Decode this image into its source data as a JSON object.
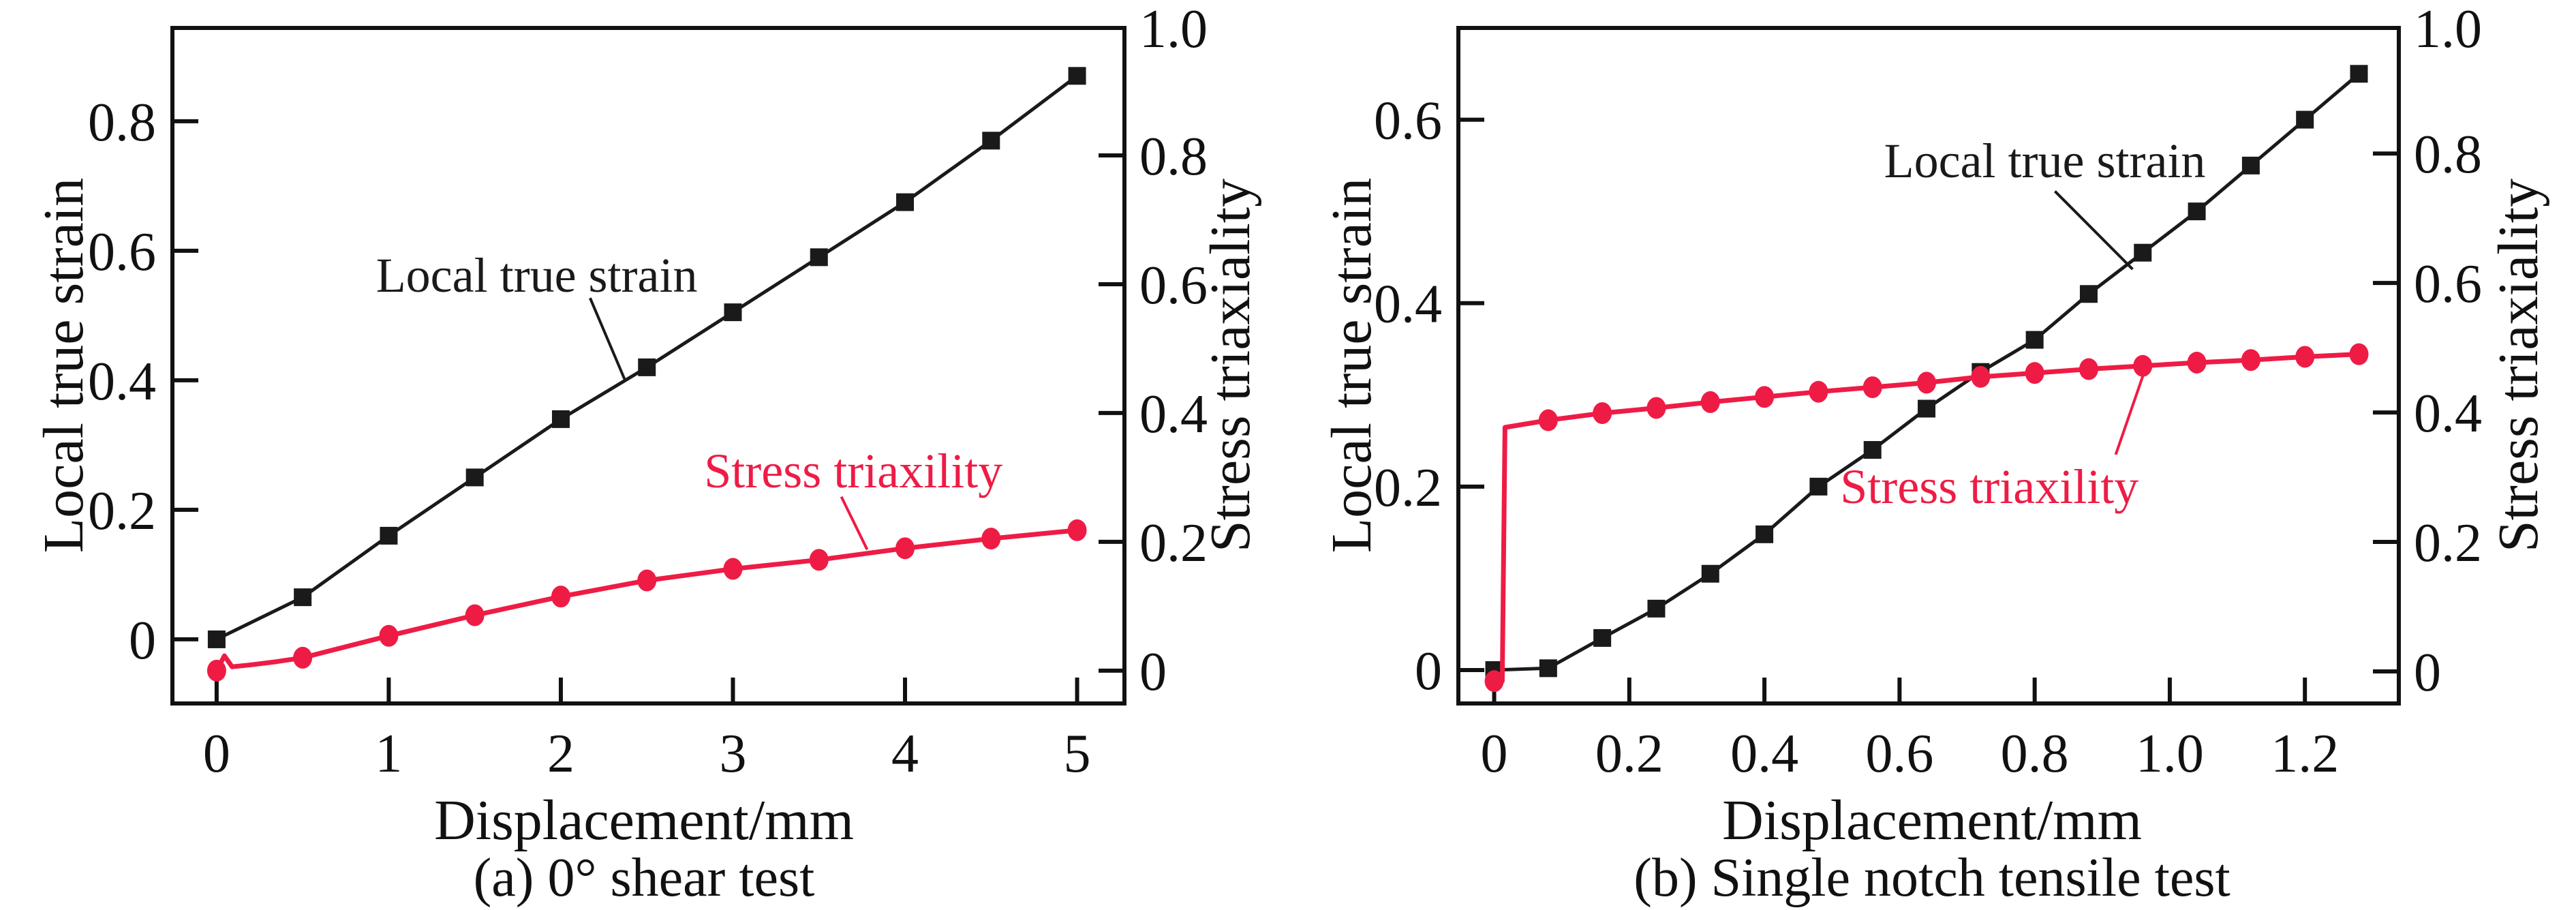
{
  "figure": {
    "background": "#ffffff",
    "text_color": "#111111",
    "axis_color": "#111111",
    "strain_color": "#1a1a1a",
    "triaxiality_color": "#ee1c45"
  },
  "chart_data": [
    {
      "type": "line",
      "caption": "(a) 0° shear test",
      "xlabel": "Displacement/mm",
      "ylabel_left": "Local true strain",
      "ylabel_right": "Stress triaxiality",
      "xlim": [
        -0.257,
        5.275
      ],
      "ylim_left": [
        -0.099,
        0.944
      ],
      "ylim_right": [
        -0.051,
        0.998
      ],
      "grid": "off",
      "x_ticks": [
        {
          "v": 0,
          "label": "0"
        },
        {
          "v": 1,
          "label": "1"
        },
        {
          "v": 2,
          "label": "2"
        },
        {
          "v": 3,
          "label": "3"
        },
        {
          "v": 4,
          "label": "4"
        },
        {
          "v": 5,
          "label": "5"
        }
      ],
      "y_ticks_left": [
        {
          "v": 0,
          "label": "0"
        },
        {
          "v": 0.2,
          "label": "0.2"
        },
        {
          "v": 0.4,
          "label": "0.4"
        },
        {
          "v": 0.6,
          "label": "0.6"
        },
        {
          "v": 0.8,
          "label": "0.8"
        }
      ],
      "y_ticks_right": [
        {
          "v": 0,
          "label": "0"
        },
        {
          "v": 0.2,
          "label": "0.2"
        },
        {
          "v": 0.4,
          "label": "0.4"
        },
        {
          "v": 0.6,
          "label": "0.6"
        },
        {
          "v": 0.8,
          "label": "0.8"
        },
        {
          "v": 0.998,
          "label": "1.0"
        }
      ],
      "series": [
        {
          "name": "Local true strain",
          "axis": "left",
          "color": "#1a1a1a",
          "marker": "square",
          "x": [
            0,
            0.5,
            1,
            1.5,
            2,
            2.5,
            3,
            3.5,
            4,
            4.5,
            5
          ],
          "y": [
            0,
            0.065,
            0.16,
            0.25,
            0.34,
            0.42,
            0.505,
            0.59,
            0.675,
            0.77,
            0.87
          ]
        },
        {
          "name": "Stress triaxility",
          "axis": "right",
          "color": "#ee1c45",
          "marker": "circle",
          "x": [
            0,
            0.5,
            1,
            1.5,
            2,
            2.5,
            3,
            3.5,
            4,
            4.5,
            5
          ],
          "y": [
            0,
            0.02,
            0.054,
            0.086,
            0.115,
            0.14,
            0.158,
            0.172,
            0.19,
            0.205,
            0.218
          ],
          "line_x": [
            0,
            0.045,
            0.09,
            0.2,
            0.35,
            0.5,
            1,
            1.5,
            2,
            2.5,
            3,
            3.5,
            4,
            4.5,
            5
          ],
          "line_y": [
            0,
            0.023,
            0.006,
            0.009,
            0.014,
            0.02,
            0.054,
            0.086,
            0.115,
            0.14,
            0.158,
            0.172,
            0.19,
            0.205,
            0.218
          ]
        }
      ],
      "annotations": [
        {
          "id": "strain",
          "text": "Local true strain",
          "color": "#1a1a1a",
          "axis": "left",
          "at": {
            "x": 1.86,
            "v": 0.562
          },
          "leader": [
            {
              "x": 2.17,
              "v": 0.527
            },
            {
              "x": 2.37,
              "v": 0.402
            }
          ]
        },
        {
          "id": "triax",
          "text": "Stress triaxility",
          "color": "#ee1c45",
          "axis": "right",
          "at": {
            "x": 3.7,
            "v": 0.31
          },
          "leader": [
            {
              "x": 3.63,
              "v": 0.27
            },
            {
              "x": 3.78,
              "v": 0.188
            }
          ]
        }
      ]
    },
    {
      "type": "line",
      "caption": "(b) Single notch tensile test",
      "xlabel": "Displacement/mm",
      "ylabel_left": "Local true strain",
      "ylabel_right": "Stress triaxiality",
      "xlim": [
        -0.053,
        1.339
      ],
      "ylim_left": [
        -0.0364,
        0.7
      ],
      "ylim_right": [
        -0.0495,
        0.994
      ],
      "grid": "off",
      "x_ticks": [
        {
          "v": 0,
          "label": "0"
        },
        {
          "v": 0.2,
          "label": "0.2"
        },
        {
          "v": 0.4,
          "label": "0.4"
        },
        {
          "v": 0.6,
          "label": "0.6"
        },
        {
          "v": 0.8,
          "label": "0.8"
        },
        {
          "v": 1.0,
          "label": "1.0"
        },
        {
          "v": 1.2,
          "label": "1.2"
        }
      ],
      "y_ticks_left": [
        {
          "v": 0,
          "label": "0"
        },
        {
          "v": 0.2,
          "label": "0.2"
        },
        {
          "v": 0.4,
          "label": "0.4"
        },
        {
          "v": 0.6,
          "label": "0.6"
        }
      ],
      "y_ticks_right": [
        {
          "v": 0,
          "label": "0"
        },
        {
          "v": 0.2,
          "label": "0.2"
        },
        {
          "v": 0.4,
          "label": "0.4"
        },
        {
          "v": 0.6,
          "label": "0.6"
        },
        {
          "v": 0.8,
          "label": "0.8"
        },
        {
          "v": 0.994,
          "label": "1.0"
        }
      ],
      "series": [
        {
          "name": "Local true strain",
          "axis": "left",
          "color": "#1a1a1a",
          "marker": "square",
          "x": [
            0,
            0.08,
            0.16,
            0.24,
            0.32,
            0.4,
            0.48,
            0.56,
            0.64,
            0.72,
            0.8,
            0.88,
            0.96,
            1.04,
            1.12,
            1.2,
            1.28
          ],
          "y": [
            0,
            0.002,
            0.035,
            0.067,
            0.105,
            0.148,
            0.2,
            0.24,
            0.285,
            0.325,
            0.36,
            0.41,
            0.455,
            0.5,
            0.55,
            0.6,
            0.65
          ]
        },
        {
          "name": "Stress triaxility",
          "axis": "right",
          "color": "#ee1c45",
          "marker": "circle",
          "x": [
            0,
            0.08,
            0.16,
            0.24,
            0.32,
            0.4,
            0.48,
            0.56,
            0.64,
            0.72,
            0.8,
            0.88,
            0.96,
            1.04,
            1.12,
            1.2,
            1.28
          ],
          "y": [
            -0.015,
            0.388,
            0.399,
            0.407,
            0.416,
            0.424,
            0.432,
            0.439,
            0.446,
            0.455,
            0.461,
            0.467,
            0.472,
            0.477,
            0.481,
            0.486,
            0.49
          ],
          "line_x": [
            0,
            0.012,
            0.016,
            0.08,
            0.16,
            0.24,
            0.32,
            0.4,
            0.48,
            0.56,
            0.64,
            0.72,
            0.8,
            0.88,
            0.96,
            1.04,
            1.12,
            1.2,
            1.28
          ],
          "line_y": [
            -0.015,
            -0.015,
            0.377,
            0.388,
            0.399,
            0.407,
            0.416,
            0.424,
            0.432,
            0.439,
            0.446,
            0.455,
            0.461,
            0.467,
            0.472,
            0.477,
            0.481,
            0.486,
            0.49
          ]
        }
      ],
      "annotations": [
        {
          "id": "strain",
          "text": "Local true strain",
          "color": "#1a1a1a",
          "axis": "left",
          "at": {
            "x": 0.815,
            "v": 0.555
          },
          "leader": [
            {
              "x": 0.83,
              "v": 0.522
            },
            {
              "x": 0.945,
              "v": 0.437
            }
          ]
        },
        {
          "id": "triax",
          "text": "Stress triaxility",
          "color": "#ee1c45",
          "axis": "right",
          "at": {
            "x": 0.733,
            "v": 0.285
          },
          "leader": [
            {
              "x": 0.92,
              "v": 0.335
            },
            {
              "x": 0.963,
              "v": 0.465
            }
          ]
        }
      ]
    }
  ]
}
